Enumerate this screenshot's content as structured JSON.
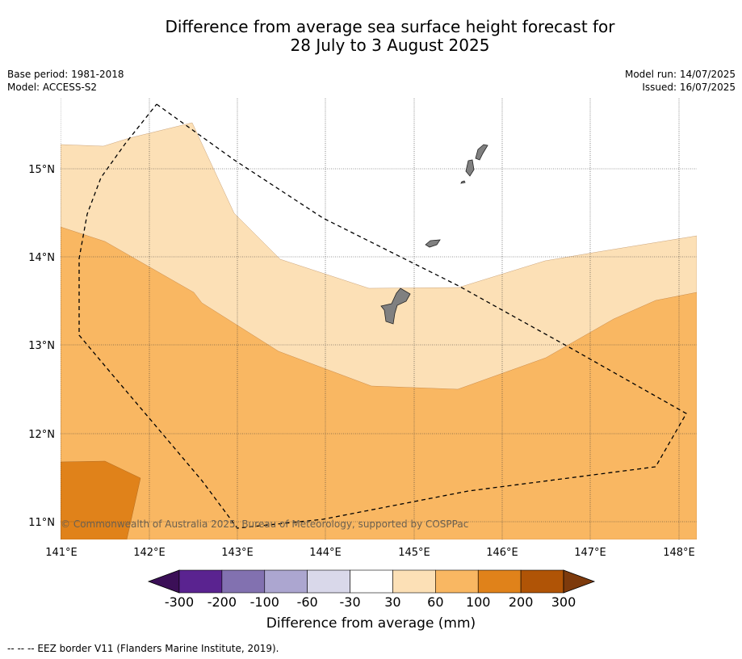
{
  "title_line1": "Difference from average sea surface height forecast for",
  "title_line2": "28 July to 3 August 2025",
  "meta_left": {
    "base_period": "Base period: 1981-2018",
    "model": "Model: ACCESS-S2"
  },
  "meta_right": {
    "model_run": "Model run: 14/07/2025",
    "issued": "Issued: 16/07/2025"
  },
  "copyright": "© Commonwealth of Australia 2025, Bureau of Meteorology, supported by COSPPac",
  "lat_labels": [
    "15°N",
    "14°N",
    "13°N",
    "12°N",
    "11°N"
  ],
  "lon_labels": [
    "141°E",
    "142°E",
    "143°E",
    "144°E",
    "145°E",
    "146°E",
    "147°E",
    "148°E"
  ],
  "colorbar": {
    "label": "Difference from average (mm)",
    "ticks": [
      "-300",
      "-200",
      "-100",
      "-60",
      "-30",
      "30",
      "60",
      "100",
      "200",
      "300"
    ],
    "colors": [
      "#3b0f57",
      "#5a2390",
      "#8271b0",
      "#aca6d0",
      "#d9d8ea",
      "#ffffff",
      "#fce0b6",
      "#f9b762",
      "#e0821a",
      "#b05406",
      "#7d3a0c"
    ]
  },
  "footnote": "--  --  -- EEZ border V11 (Flanders Marine Institute, 2019).",
  "map_colors": {
    "light": "#fce0b6",
    "mid": "#f9b762",
    "dark": "#e0821a",
    "land": "#808080"
  }
}
